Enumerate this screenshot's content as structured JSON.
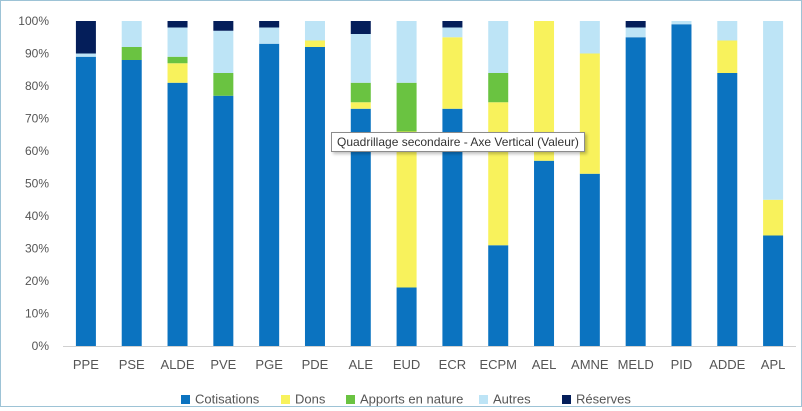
{
  "chart_data": {
    "type": "bar",
    "stacked": true,
    "categories": [
      "PPE",
      "PSE",
      "ALDE",
      "PVE",
      "PGE",
      "PDE",
      "ALE",
      "EUD",
      "ECR",
      "ECPM",
      "AEL",
      "AMNE",
      "MELD",
      "PID",
      "ADDE",
      "APL"
    ],
    "series": [
      {
        "name": "Cotisations",
        "color": "#0b73c0",
        "values": [
          89,
          88,
          81,
          77,
          93,
          92,
          73,
          18,
          73,
          31,
          57,
          53,
          95,
          99,
          84,
          34
        ]
      },
      {
        "name": "Dons",
        "color": "#f8f25c",
        "values": [
          0,
          0,
          6,
          0,
          0,
          2,
          2,
          48,
          22,
          44,
          43,
          37,
          0,
          0,
          10,
          11
        ]
      },
      {
        "name": "Apports en nature",
        "color": "#6ac341",
        "values": [
          0,
          4,
          2,
          7,
          0,
          0,
          6,
          15,
          0,
          9,
          0,
          0,
          0,
          0,
          0,
          0
        ]
      },
      {
        "name": "Autres",
        "color": "#bde4f6",
        "values": [
          1,
          8,
          9,
          13,
          5,
          6,
          15,
          19,
          3,
          16,
          0,
          10,
          3,
          1,
          6,
          55
        ]
      },
      {
        "name": "Réserves",
        "color": "#041e5a",
        "values": [
          10,
          0,
          2,
          3,
          2,
          0,
          4,
          0,
          2,
          0,
          0,
          0,
          2,
          0,
          0,
          0
        ]
      }
    ],
    "ylim": [
      0,
      100
    ],
    "yticks": [
      0,
      10,
      20,
      30,
      40,
      50,
      60,
      70,
      80,
      90,
      100
    ],
    "ytick_labels": [
      "0%",
      "10%",
      "20%",
      "30%",
      "40%",
      "50%",
      "60%",
      "70%",
      "80%",
      "90%",
      "100%"
    ],
    "grid": false,
    "legend_position": "bottom"
  },
  "tooltip": {
    "text": "Quadrillage secondaire - Axe Vertical (Valeur)"
  }
}
